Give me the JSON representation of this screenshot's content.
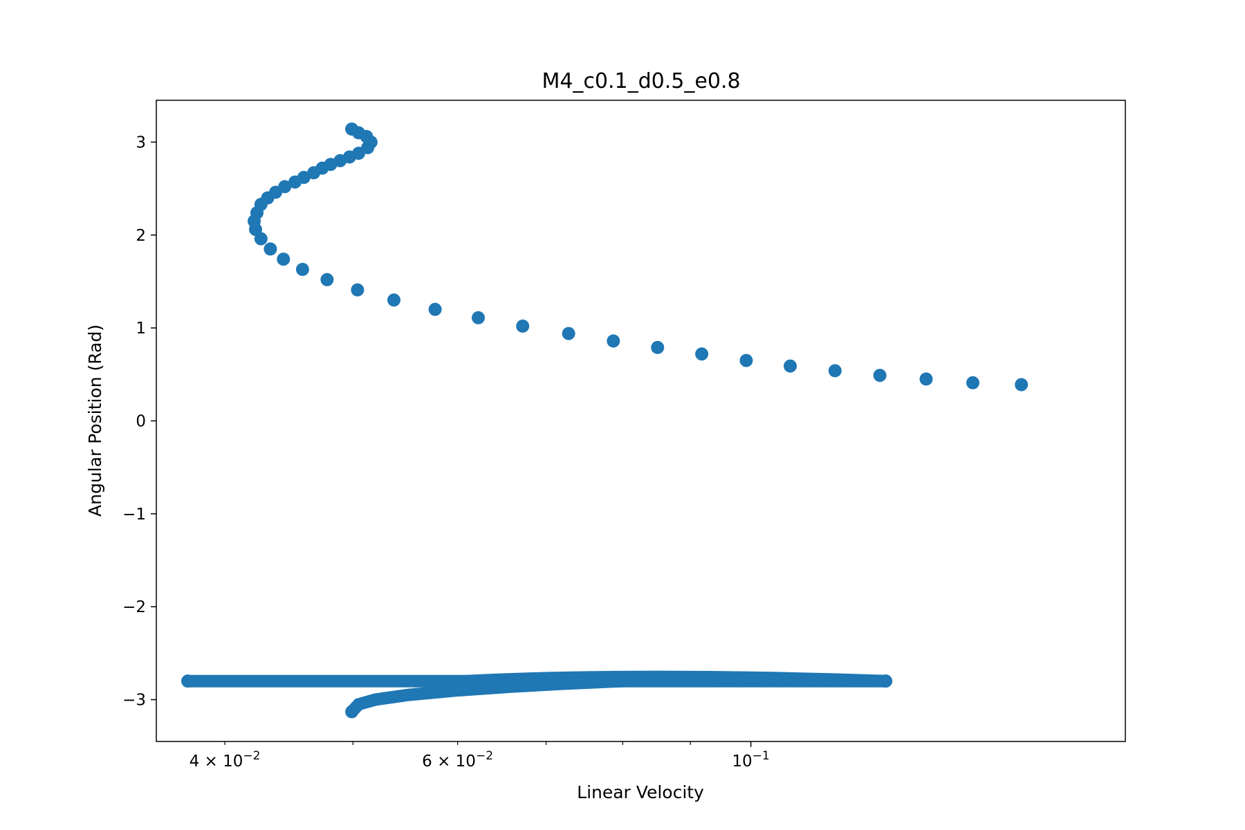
{
  "chart_data": {
    "type": "scatter",
    "title": "M4_c0.1_d0.5_e0.8",
    "xlabel": "Linear Velocity",
    "ylabel": "Angular Position (Rad)",
    "xscale": "log",
    "xlim": [
      0.0355,
      0.192
    ],
    "ylim": [
      -3.45,
      3.45
    ],
    "grid": false,
    "legend": "none",
    "marker_color": "#1f77b4",
    "x_ticks_major": [
      {
        "value": 0.1,
        "base": "10",
        "exp": "−1"
      }
    ],
    "x_ticks_minor": [
      {
        "value": 0.04,
        "mantissa": "4",
        "base": "10",
        "exp": "−2"
      },
      {
        "value": 0.05,
        "mantissa": "",
        "base": "",
        "exp": ""
      },
      {
        "value": 0.06,
        "mantissa": "6",
        "base": "10",
        "exp": "−2"
      },
      {
        "value": 0.07,
        "mantissa": "",
        "base": "",
        "exp": ""
      },
      {
        "value": 0.08,
        "mantissa": "",
        "base": "",
        "exp": ""
      },
      {
        "value": 0.09,
        "mantissa": "",
        "base": "",
        "exp": ""
      }
    ],
    "y_ticks": [
      {
        "value": -3,
        "label": "−3"
      },
      {
        "value": -2,
        "label": "−2"
      },
      {
        "value": -1,
        "label": "−1"
      },
      {
        "value": 0,
        "label": "0"
      },
      {
        "value": 1,
        "label": "1"
      },
      {
        "value": 2,
        "label": "2"
      },
      {
        "value": 3,
        "label": "3"
      }
    ],
    "series": [
      {
        "points": [
          [
            0.0499,
            3.14
          ],
          [
            0.0505,
            3.1
          ],
          [
            0.0512,
            3.06
          ],
          [
            0.0516,
            3.0
          ],
          [
            0.0513,
            2.94
          ],
          [
            0.0505,
            2.88
          ],
          [
            0.0497,
            2.84
          ],
          [
            0.0489,
            2.8
          ],
          [
            0.0481,
            2.76
          ],
          [
            0.0474,
            2.72
          ],
          [
            0.0467,
            2.67
          ],
          [
            0.0459,
            2.62
          ],
          [
            0.0452,
            2.57
          ],
          [
            0.0444,
            2.52
          ],
          [
            0.0437,
            2.46
          ],
          [
            0.0431,
            2.4
          ],
          [
            0.0426,
            2.33
          ],
          [
            0.0423,
            2.24
          ],
          [
            0.0421,
            2.15
          ],
          [
            0.0422,
            2.06
          ],
          [
            0.0426,
            1.96
          ],
          [
            0.0433,
            1.85
          ],
          [
            0.0443,
            1.74
          ],
          [
            0.0458,
            1.63
          ],
          [
            0.0478,
            1.52
          ],
          [
            0.0504,
            1.41
          ],
          [
            0.0537,
            1.3
          ],
          [
            0.0577,
            1.2
          ],
          [
            0.0622,
            1.11
          ],
          [
            0.0672,
            1.02
          ],
          [
            0.0728,
            0.94
          ],
          [
            0.0787,
            0.86
          ],
          [
            0.085,
            0.79
          ],
          [
            0.0918,
            0.72
          ],
          [
            0.0992,
            0.65
          ],
          [
            0.1071,
            0.59
          ],
          [
            0.1158,
            0.54
          ],
          [
            0.1252,
            0.49
          ],
          [
            0.1357,
            0.45
          ],
          [
            0.1472,
            0.41
          ],
          [
            0.1602,
            0.39
          ]
        ],
        "trails": [
          {
            "from": [
              0.0375,
              -2.8
            ],
            "to": [
              0.1265,
              -2.8
            ]
          },
          {
            "from": [
              0.061,
              -2.8
            ],
            "to": [
              0.1265,
              -2.8
            ],
            "peak_x": 0.082,
            "peak_y": -2.74
          },
          {
            "path": [
              [
                0.0499,
                -3.13
              ],
              [
                0.0505,
                -3.05
              ],
              [
                0.052,
                -3.0
              ],
              [
                0.055,
                -2.95
              ],
              [
                0.06,
                -2.9
              ],
              [
                0.066,
                -2.86
              ],
              [
                0.072,
                -2.83
              ],
              [
                0.08,
                -2.8
              ]
            ]
          }
        ]
      }
    ]
  }
}
